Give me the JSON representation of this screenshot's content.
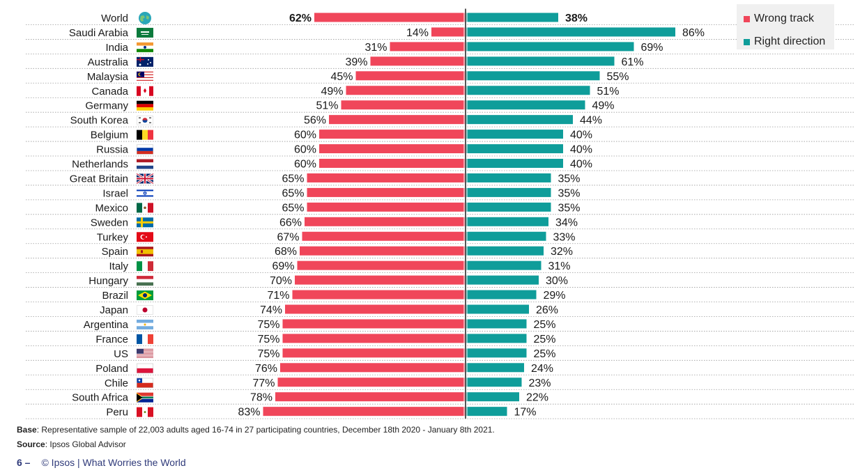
{
  "colors": {
    "wrong": "#f0465a",
    "right": "#0f9d9a",
    "legend_bg": "#f0f0f0",
    "footer_text": "#2f3a7a"
  },
  "legend": {
    "wrong_label": "Wrong track",
    "right_label": "Right direction"
  },
  "chart_data": {
    "type": "bar",
    "orientation": "horizontal-diverging",
    "categories": [
      "World",
      "Saudi Arabia",
      "India",
      "Australia",
      "Malaysia",
      "Canada",
      "Germany",
      "South Korea",
      "Belgium",
      "Russia",
      "Netherlands",
      "Great Britain",
      "Israel",
      "Mexico",
      "Sweden",
      "Turkey",
      "Spain",
      "Italy",
      "Hungary",
      "Brazil",
      "Japan",
      "Argentina",
      "France",
      "US",
      "Poland",
      "Chile",
      "South Africa",
      "Peru"
    ],
    "series": [
      {
        "name": "Wrong track",
        "values": [
          62,
          14,
          31,
          39,
          45,
          49,
          51,
          56,
          60,
          60,
          60,
          65,
          65,
          65,
          66,
          67,
          68,
          69,
          70,
          71,
          74,
          75,
          75,
          75,
          76,
          77,
          78,
          83
        ]
      },
      {
        "name": "Right direction",
        "values": [
          38,
          86,
          69,
          61,
          55,
          51,
          49,
          44,
          40,
          40,
          40,
          35,
          35,
          35,
          34,
          33,
          32,
          31,
          30,
          29,
          26,
          25,
          25,
          25,
          24,
          23,
          22,
          17
        ]
      }
    ],
    "value_suffix": "%",
    "xlim": [
      0,
      100
    ],
    "legend_position": "top-right",
    "flag_icons": [
      "globe-icon",
      "saudi-arabia-flag-icon",
      "india-flag-icon",
      "australia-flag-icon",
      "malaysia-flag-icon",
      "canada-flag-icon",
      "germany-flag-icon",
      "south-korea-flag-icon",
      "belgium-flag-icon",
      "russia-flag-icon",
      "netherlands-flag-icon",
      "great-britain-flag-icon",
      "israel-flag-icon",
      "mexico-flag-icon",
      "sweden-flag-icon",
      "turkey-flag-icon",
      "spain-flag-icon",
      "italy-flag-icon",
      "hungary-flag-icon",
      "brazil-flag-icon",
      "japan-flag-icon",
      "argentina-flag-icon",
      "france-flag-icon",
      "us-flag-icon",
      "poland-flag-icon",
      "chile-flag-icon",
      "south-africa-flag-icon",
      "peru-flag-icon"
    ]
  },
  "footer": {
    "base_label": "Base",
    "base_text": ": Representative sample of 22,003 adults aged 16-74 in 27 participating countries, December 18th 2020 - January 8th 2021.",
    "source_label": "Source",
    "source_text": ": Ipsos Global Advisor",
    "page_number": "6 –",
    "copyright": "© Ipsos | What Worries the World"
  }
}
